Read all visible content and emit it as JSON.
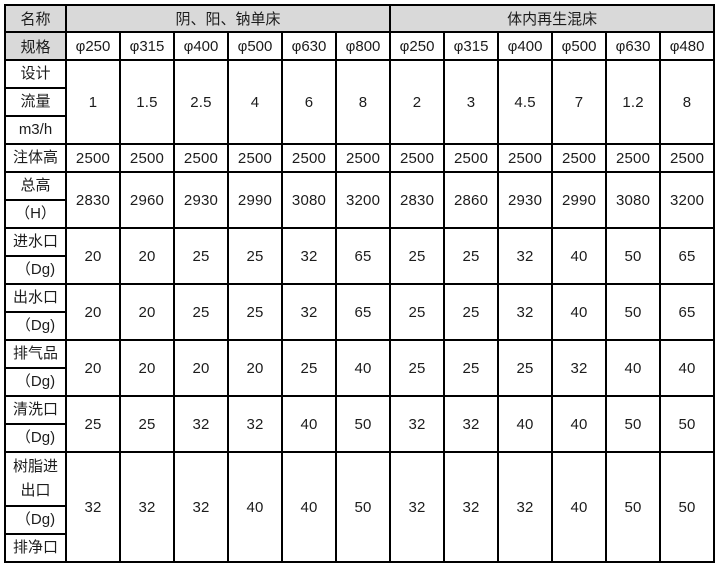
{
  "colors": {
    "header_bg": "#d9d9d9",
    "border": "#000000",
    "cell_bg": "#ffffff",
    "text": "#1c1c1c"
  },
  "table": {
    "corner_label": "名称",
    "spec_label": "规格",
    "groups": [
      {
        "label": "阴、阳、钠单床",
        "specs": [
          "φ250",
          "φ315",
          "φ400",
          "φ500",
          "φ630",
          "φ800"
        ]
      },
      {
        "label": "体内再生混床",
        "specs": [
          "φ250",
          "φ315",
          "φ400",
          "φ500",
          "φ630",
          "φ480"
        ]
      }
    ],
    "rows": [
      {
        "name": "design-flow",
        "label_cells": [
          [
            "设计"
          ],
          [
            "流量"
          ],
          [
            "m3/h"
          ]
        ],
        "values": [
          "1",
          "1.5",
          "2.5",
          "4",
          "6",
          "8",
          "2",
          "3",
          "4.5",
          "7",
          "1.2",
          "8"
        ]
      },
      {
        "name": "body-height",
        "label_cells": [
          [
            "注体高"
          ]
        ],
        "values": [
          "2500",
          "2500",
          "2500",
          "2500",
          "2500",
          "2500",
          "2500",
          "2500",
          "2500",
          "2500",
          "2500",
          "2500"
        ]
      },
      {
        "name": "total-height",
        "label_cells": [
          [
            "总高"
          ],
          [
            "（H）"
          ]
        ],
        "values": [
          "2830",
          "2960",
          "2930",
          "2990",
          "3080",
          "3200",
          "2830",
          "2860",
          "2930",
          "2990",
          "3080",
          "3200"
        ]
      },
      {
        "name": "water-inlet",
        "label_cells": [
          [
            "进水口"
          ],
          [
            "（Dg)"
          ]
        ],
        "values": [
          "20",
          "20",
          "25",
          "25",
          "32",
          "65",
          "25",
          "25",
          "32",
          "40",
          "50",
          "65"
        ]
      },
      {
        "name": "water-outlet",
        "label_cells": [
          [
            "出水口"
          ],
          [
            "（Dg)"
          ]
        ],
        "values": [
          "20",
          "20",
          "25",
          "25",
          "32",
          "65",
          "25",
          "25",
          "32",
          "40",
          "50",
          "65"
        ]
      },
      {
        "name": "exhaust-port",
        "label_cells": [
          [
            "排气品"
          ],
          [
            "（Dg)"
          ]
        ],
        "values": [
          "20",
          "20",
          "20",
          "20",
          "25",
          "40",
          "25",
          "25",
          "25",
          "32",
          "40",
          "40"
        ]
      },
      {
        "name": "cleaning-port",
        "label_cells": [
          [
            "清洗口"
          ],
          [
            "（Dg)"
          ]
        ],
        "values": [
          "25",
          "25",
          "32",
          "32",
          "40",
          "50",
          "32",
          "32",
          "40",
          "40",
          "50",
          "50"
        ]
      },
      {
        "name": "resin-inout-drain",
        "label_cells": [
          [
            "树脂进",
            "出口"
          ],
          [
            "（Dg)"
          ],
          [
            "排净口"
          ]
        ],
        "values": [
          "32",
          "32",
          "32",
          "40",
          "40",
          "50",
          "32",
          "32",
          "32",
          "40",
          "50",
          "50"
        ]
      }
    ]
  }
}
